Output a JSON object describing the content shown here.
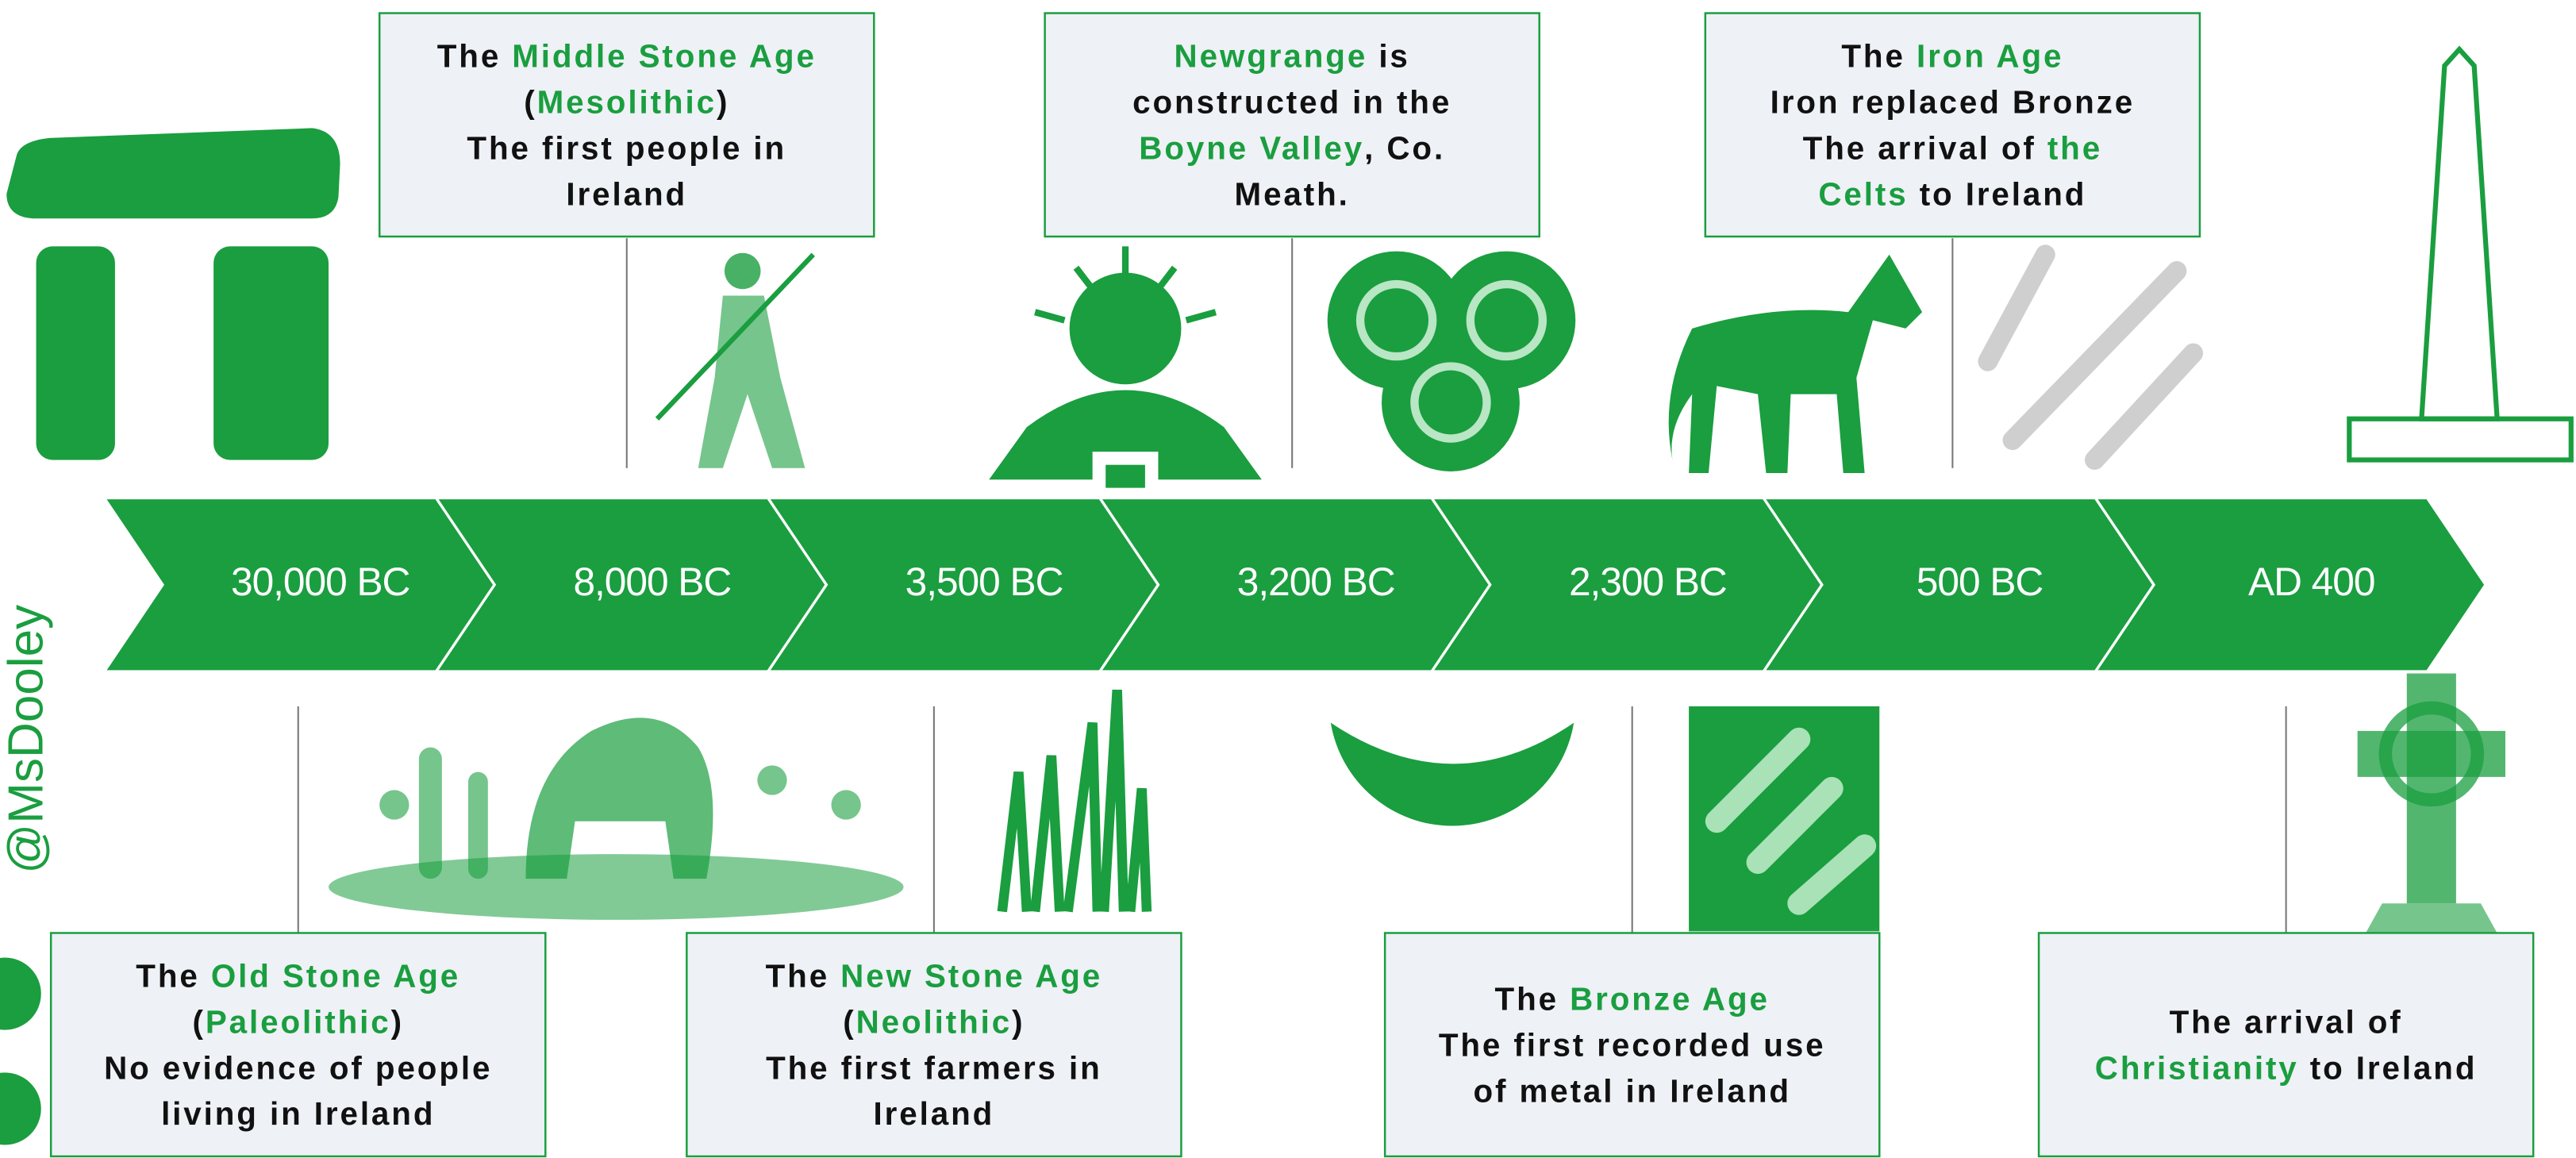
{
  "watermark": "@MsDooley",
  "timeline": [
    {
      "date": "30,000 BC"
    },
    {
      "date": "8,000 BC"
    },
    {
      "date": "3,500 BC"
    },
    {
      "date": "3,200 BC"
    },
    {
      "date": "2,300 BC"
    },
    {
      "date": "500 BC"
    },
    {
      "date": "AD 400"
    }
  ],
  "boxes": [
    {
      "lines": [
        [
          {
            "text": "The ",
            "color": "#111111"
          },
          {
            "text": "Middle Stone Age",
            "color": "#1a9e3f"
          }
        ],
        [
          {
            "text": "(",
            "color": "#111111"
          },
          {
            "text": "Mesolithic",
            "color": "#1a9e3f"
          },
          {
            "text": ")",
            "color": "#111111"
          }
        ],
        [
          {
            "text": "The first people in",
            "color": "#111111"
          }
        ],
        [
          {
            "text": "Ireland",
            "color": "#111111"
          }
        ]
      ]
    },
    {
      "lines": [
        [
          {
            "text": "Newgrange",
            "color": "#1a9e3f"
          },
          {
            "text": " is",
            "color": "#111111"
          }
        ],
        [
          {
            "text": "constructed in the",
            "color": "#111111"
          }
        ],
        [
          {
            "text": "Boyne Valley",
            "color": "#1a9e3f"
          },
          {
            "text": ", Co.",
            "color": "#111111"
          }
        ],
        [
          {
            "text": "Meath.",
            "color": "#111111"
          }
        ]
      ]
    },
    {
      "lines": [
        [
          {
            "text": "The ",
            "color": "#111111"
          },
          {
            "text": "Iron Age",
            "color": "#1a9e3f"
          }
        ],
        [
          {
            "text": "Iron replaced Bronze",
            "color": "#111111"
          }
        ],
        [
          {
            "text": "The arrival of ",
            "color": "#111111"
          },
          {
            "text": "the",
            "color": "#1a9e3f"
          }
        ],
        [
          {
            "text": "Celts",
            "color": "#1a9e3f"
          },
          {
            "text": " to Ireland",
            "color": "#111111"
          }
        ]
      ]
    },
    {
      "lines": [
        [
          {
            "text": "The ",
            "color": "#111111"
          },
          {
            "text": "Old Stone Age",
            "color": "#1a9e3f"
          }
        ],
        [
          {
            "text": "(",
            "color": "#111111"
          },
          {
            "text": "Paleolithic",
            "color": "#1a9e3f"
          },
          {
            "text": ")",
            "color": "#111111"
          }
        ],
        [
          {
            "text": "No evidence of people",
            "color": "#111111"
          }
        ],
        [
          {
            "text": "living in Ireland",
            "color": "#111111"
          }
        ]
      ]
    },
    {
      "lines": [
        [
          {
            "text": "The ",
            "color": "#111111"
          },
          {
            "text": "New Stone Age",
            "color": "#1a9e3f"
          }
        ],
        [
          {
            "text": "(",
            "color": "#111111"
          },
          {
            "text": "Neolithic",
            "color": "#1a9e3f"
          },
          {
            "text": ")",
            "color": "#111111"
          }
        ],
        [
          {
            "text": "The first farmers in",
            "color": "#111111"
          }
        ],
        [
          {
            "text": "Ireland",
            "color": "#111111"
          }
        ]
      ]
    },
    {
      "lines": [
        [
          {
            "text": "The ",
            "color": "#111111"
          },
          {
            "text": "Bronze Age",
            "color": "#1a9e3f"
          }
        ],
        [
          {
            "text": "The first recorded use",
            "color": "#111111"
          }
        ],
        [
          {
            "text": "of metal in Ireland",
            "color": "#111111"
          }
        ]
      ]
    },
    {
      "lines": [
        [
          {
            "text": "The arrival of",
            "color": "#111111"
          }
        ],
        [
          {
            "text": "Christianity",
            "color": "#1a9e3f"
          },
          {
            "text": " to Ireland",
            "color": "#111111"
          }
        ]
      ]
    }
  ]
}
